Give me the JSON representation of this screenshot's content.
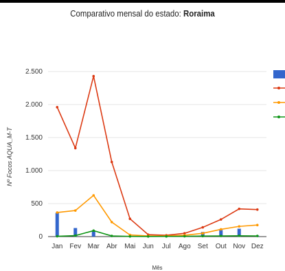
{
  "title_prefix": "Comparativo mensal do estado: ",
  "title_state": "Roraima",
  "chart_data": {
    "type": "bar+line",
    "title": "Comparativo mensal do estado: Roraima",
    "xlabel": "Mês",
    "ylabel": "Nº Focos AQUA_M-T",
    "ylim": [
      0,
      2500
    ],
    "yticks": [
      0,
      500,
      1000,
      1500,
      2000,
      2500
    ],
    "ytick_labels": [
      "0",
      "500",
      "1.000",
      "1.500",
      "2.000",
      "2.500"
    ],
    "categories": [
      "Jan",
      "Fev",
      "Mar",
      "Abr",
      "Mai",
      "Jun",
      "Jul",
      "Ago",
      "Set",
      "Out",
      "Nov",
      "Dez"
    ],
    "grid": true,
    "legend_position": "right",
    "bar_series": {
      "color": "#3366cc",
      "values": [
        360,
        130,
        85,
        10,
        5,
        5,
        5,
        10,
        70,
        100,
        120,
        15
      ]
    },
    "line_series": [
      {
        "color": "#dc3912",
        "values": [
          1960,
          1340,
          2430,
          1130,
          270,
          30,
          20,
          50,
          140,
          260,
          420,
          410
        ]
      },
      {
        "color": "#ff9900",
        "values": [
          365,
          395,
          625,
          220,
          25,
          10,
          10,
          20,
          50,
          110,
          155,
          175
        ]
      },
      {
        "color": "#109618",
        "values": [
          5,
          15,
          90,
          10,
          3,
          2,
          3,
          5,
          8,
          10,
          12,
          10
        ]
      }
    ]
  }
}
